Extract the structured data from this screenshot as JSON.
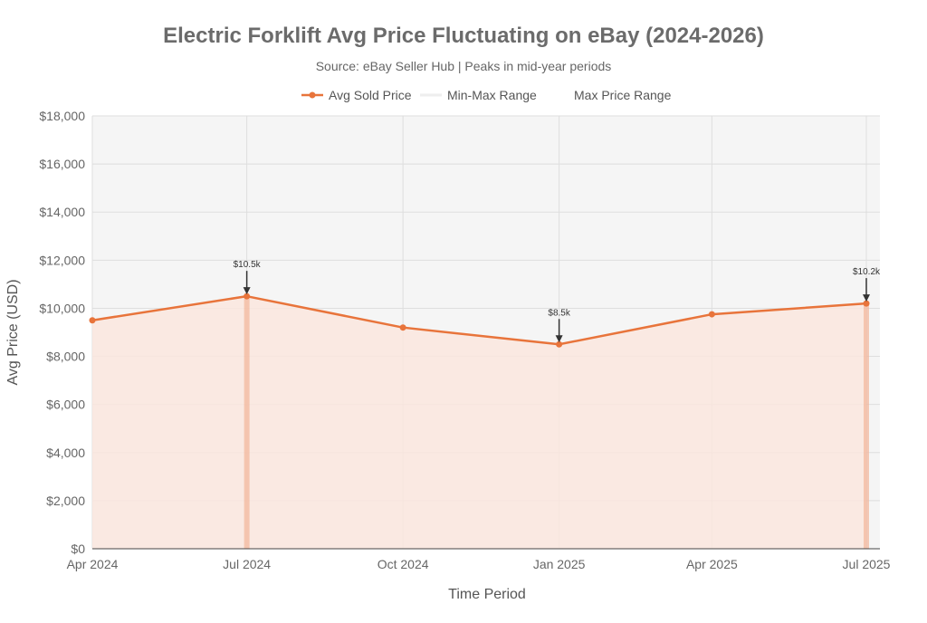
{
  "chart_data": {
    "type": "line",
    "title": "Electric Forklift Avg Price Fluctuating on eBay (2024-2026)",
    "subtitle": "Source: eBay Seller Hub | Peaks in mid-year periods",
    "xlabel": "Time Period",
    "ylabel": "Avg Price (USD)",
    "ylim": [
      0,
      18000
    ],
    "yticks": [
      0,
      2000,
      4000,
      6000,
      8000,
      10000,
      12000,
      14000,
      16000,
      18000
    ],
    "ytick_labels": [
      "$0",
      "$2,000",
      "$4,000",
      "$6,000",
      "$8,000",
      "$10,000",
      "$12,000",
      "$14,000",
      "$16,000",
      "$18,000"
    ],
    "x_range": [
      "2024-04-01",
      "2025-07-01"
    ],
    "xticks": [
      {
        "date": "2024-04-01",
        "label": "Apr 2024"
      },
      {
        "date": "2024-07-01",
        "label": "Jul 2024"
      },
      {
        "date": "2024-10-01",
        "label": "Oct 2024"
      },
      {
        "date": "2025-01-01",
        "label": "Jan 2025"
      },
      {
        "date": "2025-04-01",
        "label": "Apr 2025"
      },
      {
        "date": "2025-07-01",
        "label": "Jul 2025"
      }
    ],
    "grid": true,
    "legend_position": "top-center",
    "legend": [
      "Avg Sold Price",
      "Min-Max Range",
      "Max Price Range"
    ],
    "series": [
      {
        "name": "Avg Sold Price",
        "color": "#e8743b",
        "x": [
          "2024-04-01",
          "2024-07-01",
          "2024-10-01",
          "2025-01-01",
          "2025-04-01",
          "2025-07-01"
        ],
        "y": [
          9500,
          10500,
          9200,
          8500,
          9750,
          10200
        ]
      }
    ],
    "annotations": [
      {
        "x": "2024-07-01",
        "y": 10500,
        "text": "$10.5k"
      },
      {
        "x": "2025-01-01",
        "y": 8500,
        "text": "$8.5k"
      },
      {
        "x": "2025-07-01",
        "y": 10200,
        "text": "$10.2k"
      }
    ],
    "colors": {
      "line": "#e8743b",
      "area_fill": "#fbe6dd",
      "range_band": "#f5f5f5",
      "peak_band": "#f2b59a"
    }
  }
}
